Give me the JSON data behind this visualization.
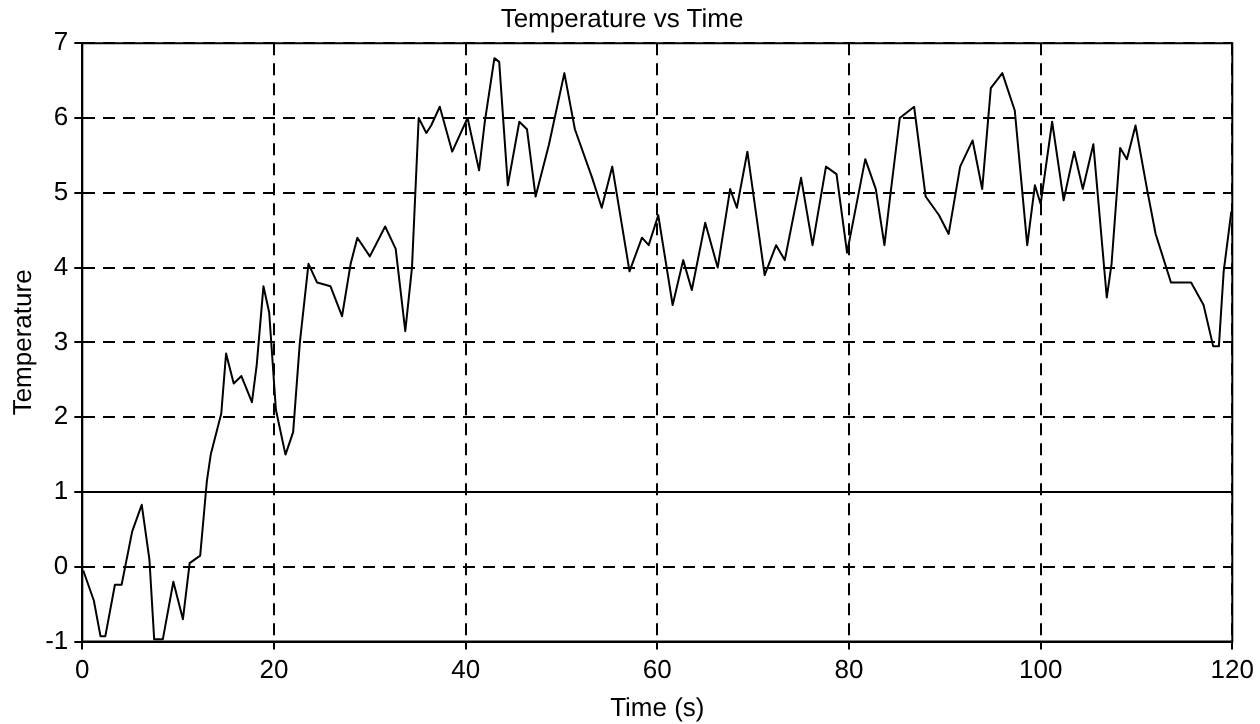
{
  "chart_data": {
    "type": "line",
    "title": "Temperature vs Time",
    "xlabel": "Time (s)",
    "ylabel": "Temperature",
    "xlim": [
      0,
      120
    ],
    "xticks": [
      0,
      20,
      40,
      60,
      80,
      100,
      120
    ],
    "ylim": [
      -1,
      7
    ],
    "yticks": [
      -1,
      0,
      1,
      2,
      3,
      4,
      5,
      6,
      7
    ],
    "grid": true,
    "marker": "none",
    "line_style": "solid",
    "ref_lines": [
      {
        "axis": "y",
        "value": 1,
        "color": "#000000",
        "line_style": "solid"
      }
    ],
    "series": [
      {
        "color": "#000000",
        "x": [
          0.1,
          1.2,
          1.9,
          2.4,
          3.4,
          4.1,
          5.2,
          6.2,
          7,
          7.5,
          8.4,
          9.5,
          10.5,
          11.2,
          12.3,
          13,
          13.4,
          14.5,
          15,
          15.8,
          16.6,
          17.7,
          18.2,
          18.9,
          19.5,
          20.2,
          21.2,
          22,
          22.7,
          23.6,
          24.5,
          25.9,
          27.1,
          28,
          28.7,
          30,
          31.6,
          32.7,
          33.7,
          34.4,
          35.1,
          35.9,
          36.4,
          37.3,
          38.6,
          40.2,
          41.4,
          42,
          43,
          43.5,
          44.4,
          45.6,
          46.4,
          47.3,
          48.7,
          50.3,
          51.4,
          53.2,
          54.2,
          55.3,
          57.1,
          58.4,
          59.1,
          60.1,
          61.6,
          62.7,
          63.6,
          65,
          66.3,
          67.6,
          68.3,
          69.4,
          71.2,
          72.4,
          73.3,
          75,
          76.2,
          77.6,
          78.7,
          79.8,
          81.7,
          82.8,
          83.7,
          84.2,
          85.3,
          86.8,
          88,
          89.4,
          90.4,
          91.6,
          92.9,
          93.9,
          94.8,
          96,
          97.3,
          98.6,
          99.4,
          100,
          101.2,
          102.4,
          103.5,
          104.4,
          105.5,
          106.9,
          107.4,
          108.3,
          109,
          109.9,
          111.1,
          112,
          113.6,
          115.7,
          117,
          118,
          118.6,
          119.1,
          119.9
        ],
        "values": [
          -0.05,
          -0.45,
          -0.93,
          -0.93,
          -0.24,
          -0.24,
          0.47,
          0.83,
          0.1,
          -0.97,
          -0.97,
          -0.2,
          -0.7,
          0.05,
          0.15,
          1.15,
          1.5,
          2.05,
          2.85,
          2.45,
          2.55,
          2.2,
          2.7,
          3.75,
          3.4,
          2.1,
          1.5,
          1.8,
          3.0,
          4.05,
          3.8,
          3.75,
          3.35,
          4.05,
          4.4,
          4.15,
          4.55,
          4.25,
          3.15,
          4.0,
          6.0,
          5.8,
          5.9,
          6.15,
          5.55,
          6.0,
          5.3,
          5.95,
          6.8,
          6.75,
          5.1,
          5.95,
          5.85,
          4.95,
          5.65,
          6.6,
          5.85,
          5.2,
          4.8,
          5.35,
          3.95,
          4.4,
          4.3,
          4.7,
          3.5,
          4.1,
          3.7,
          4.6,
          4.0,
          5.05,
          4.8,
          5.55,
          3.9,
          4.3,
          4.1,
          5.2,
          4.3,
          5.35,
          5.25,
          4.2,
          5.45,
          5.05,
          4.3,
          4.85,
          6.0,
          6.15,
          4.95,
          4.7,
          4.45,
          5.35,
          5.7,
          5.05,
          6.4,
          6.6,
          6.1,
          4.3,
          5.1,
          4.85,
          5.95,
          4.9,
          5.55,
          5.05,
          5.65,
          3.6,
          4.05,
          5.6,
          5.45,
          5.9,
          5.05,
          4.45,
          3.8,
          3.8,
          3.5,
          2.95,
          2.95,
          3.95,
          4.75
        ]
      }
    ]
  }
}
